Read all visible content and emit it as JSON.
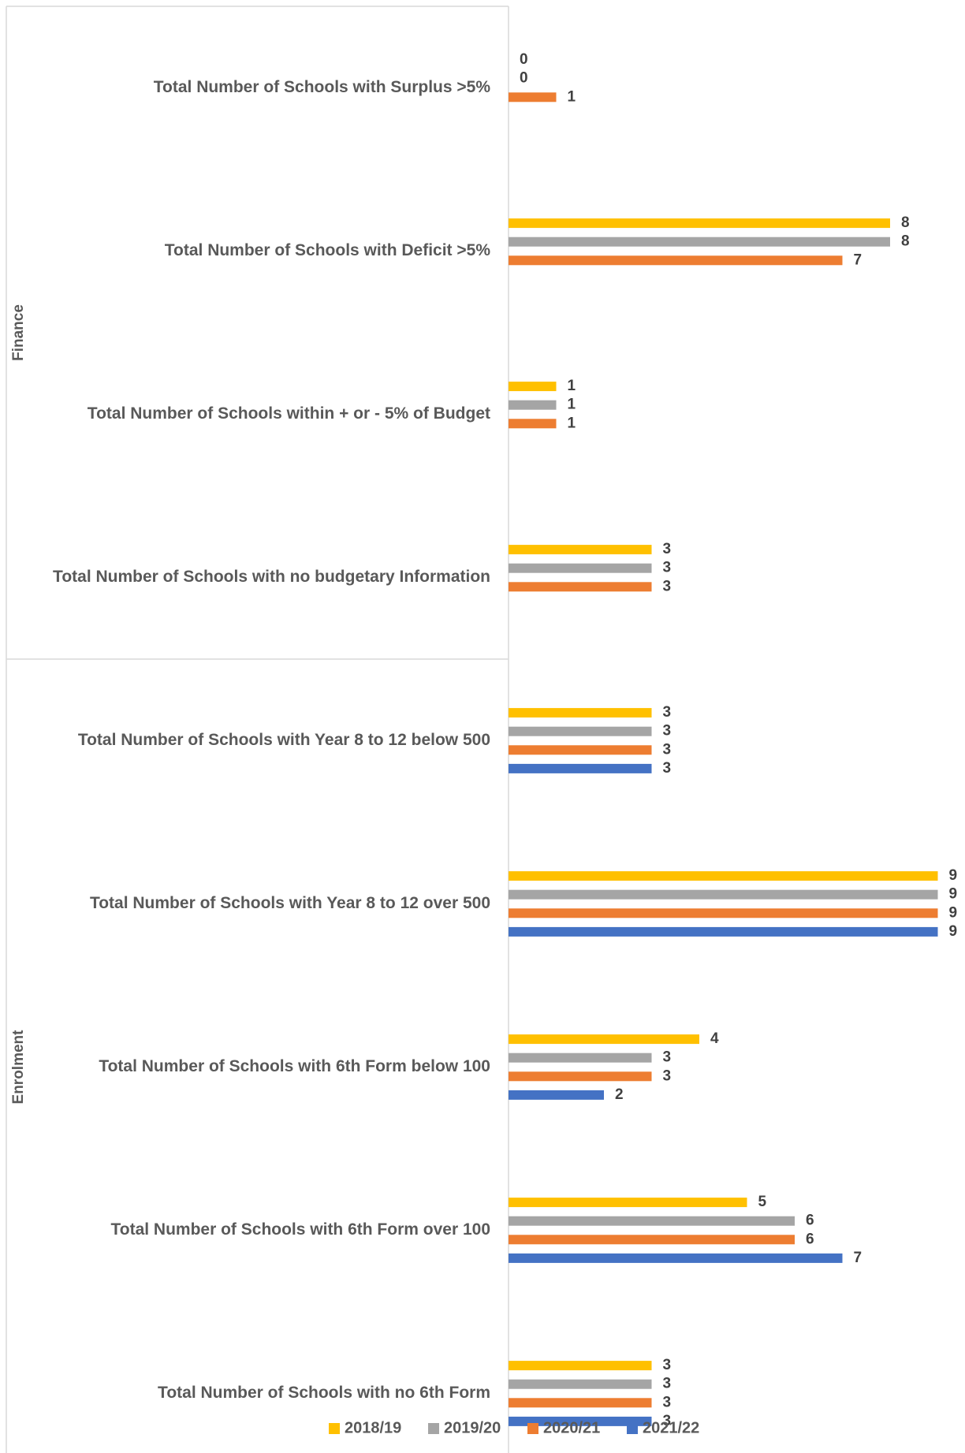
{
  "chart_data": {
    "type": "bar",
    "orientation": "horizontal",
    "groups": [
      {
        "name": "Finance",
        "categories": [
          "Total Number of Schools with Surplus >5%",
          "Total Number of Schools with Deficit >5%",
          "Total Number of Schools within + or - 5% of Budget",
          "Total Number of Schools with no budgetary Information"
        ]
      },
      {
        "name": "Enrolment",
        "categories": [
          "Total Number of Schools with Year 8 to 12 below 500",
          "Total Number of Schools with Year 8 to 12 over 500",
          "Total Number of Schools with 6th Form below 100",
          "Total Number of Schools with 6th Form over 100",
          "Total Number of Schools with no 6th Form"
        ]
      }
    ],
    "categories": [
      "Total Number of Schools with Surplus >5%",
      "Total Number of Schools with Deficit >5%",
      "Total Number of Schools within + or - 5% of Budget",
      "Total Number of Schools with no budgetary Information",
      "Total Number of Schools with Year 8 to 12 below 500",
      "Total Number of Schools with Year 8 to 12 over 500",
      "Total Number of Schools with 6th Form below 100",
      "Total Number of Schools with 6th Form over 100",
      "Total Number of Schools with no 6th Form"
    ],
    "series": [
      {
        "name": "2018/19",
        "color": "#FFC000",
        "values": [
          0,
          8,
          1,
          3,
          3,
          9,
          4,
          5,
          3
        ]
      },
      {
        "name": "2019/20",
        "color": "#A5A5A5",
        "values": [
          0,
          8,
          1,
          3,
          3,
          9,
          3,
          6,
          3
        ]
      },
      {
        "name": "2020/21",
        "color": "#ED7D31",
        "values": [
          1,
          7,
          1,
          3,
          3,
          9,
          3,
          6,
          3
        ]
      },
      {
        "name": "2021/22",
        "color": "#4472C4",
        "values": [
          null,
          null,
          null,
          null,
          3,
          9,
          2,
          7,
          3
        ]
      }
    ],
    "xlim": [
      0,
      9
    ],
    "grid": false,
    "data_labels": true,
    "legend_position": "bottom"
  }
}
